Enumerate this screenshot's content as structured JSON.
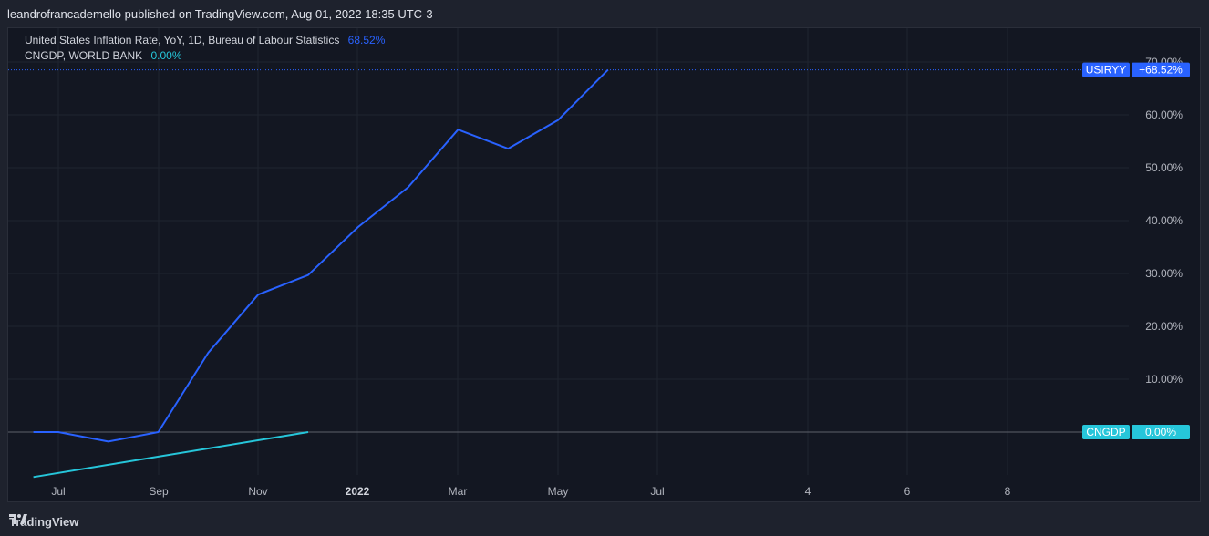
{
  "header": {
    "publish_line": "leandrofrancademello published on TradingView.com, Aug 01, 2022 18:35 UTC-3"
  },
  "legend": [
    {
      "name": "United States Inflation Rate, YoY, 1D, Bureau of Labour Statistics",
      "value": "68.52%",
      "color": "#2962ff"
    },
    {
      "name": "CNGDP, WORLD BANK",
      "value": "0.00%",
      "color": "#26c6da"
    }
  ],
  "footer": {
    "brand": "TradingView"
  },
  "colors": {
    "background": "#131722",
    "grid": "#1f2430",
    "axis_text": "#b2b5be",
    "usiryy": "#2962ff",
    "cngdp": "#26c6da"
  },
  "chart_data": {
    "type": "line",
    "x_ticks": [
      "Jul",
      "Sep",
      "Nov",
      "2022",
      "Mar",
      "May",
      "Jul",
      "4",
      "6",
      "8"
    ],
    "y_ticks": [
      "70.00%",
      "60.00%",
      "50.00%",
      "40.00%",
      "30.00%",
      "20.00%",
      "10.00%"
    ],
    "ylim": [
      -9,
      72
    ],
    "grid": true,
    "series": [
      {
        "name": "USIRYY",
        "color": "#2962ff",
        "points": [
          {
            "t": -0.5,
            "y": 0.0
          },
          {
            "t": 0,
            "y": 0.0
          },
          {
            "t": 1,
            "y": -1.8
          },
          {
            "t": 2,
            "y": 0.0
          },
          {
            "t": 3,
            "y": 15.0
          },
          {
            "t": 4,
            "y": 26.0
          },
          {
            "t": 5,
            "y": 29.7
          },
          {
            "t": 6,
            "y": 38.8
          },
          {
            "t": 7,
            "y": 46.3
          },
          {
            "t": 8,
            "y": 57.2
          },
          {
            "t": 9,
            "y": 53.6
          },
          {
            "t": 10,
            "y": 59.0
          },
          {
            "t": 11,
            "y": 68.52
          }
        ],
        "label": "USIRYY",
        "last_value": "+68.52%"
      },
      {
        "name": "CNGDP",
        "color": "#26c6da",
        "points": [
          {
            "t": -0.5,
            "y": -8.5
          },
          {
            "t": 5.0,
            "y": 0.0
          }
        ],
        "label": "CNGDP",
        "last_value": "0.00%"
      }
    ]
  }
}
